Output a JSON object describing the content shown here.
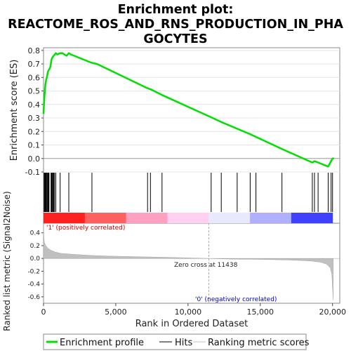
{
  "title_lines": [
    "Enrichment plot:",
    "REACTOME_ROS_AND_RNS_PRODUCTION_IN_PHA",
    "GOCYTES"
  ],
  "chart_data": [
    {
      "type": "line",
      "panel": "enrichment-score",
      "ylabel": "Enrichment score (ES)",
      "ylim": [
        -0.1,
        0.82
      ],
      "yticks": [
        "-0.1",
        "0.0",
        "0.1",
        "0.2",
        "0.3",
        "0.4",
        "0.5",
        "0.6",
        "0.7",
        "0.8"
      ],
      "grid": true,
      "series": [
        {
          "name": "Enrichment profile",
          "color": "#00e000",
          "points": [
            [
              0,
              0.33
            ],
            [
              30,
              0.4
            ],
            [
              60,
              0.45
            ],
            [
              90,
              0.5
            ],
            [
              130,
              0.55
            ],
            [
              180,
              0.58
            ],
            [
              230,
              0.6
            ],
            [
              280,
              0.63
            ],
            [
              330,
              0.65
            ],
            [
              400,
              0.66
            ],
            [
              480,
              0.68
            ],
            [
              530,
              0.72
            ],
            [
              580,
              0.74
            ],
            [
              630,
              0.75
            ],
            [
              700,
              0.76
            ],
            [
              780,
              0.77
            ],
            [
              850,
              0.78
            ],
            [
              950,
              0.77
            ],
            [
              1150,
              0.78
            ],
            [
              1300,
              0.78
            ],
            [
              1600,
              0.76
            ],
            [
              1750,
              0.78
            ],
            [
              1900,
              0.77
            ],
            [
              3300,
              0.71
            ],
            [
              3700,
              0.7
            ],
            [
              7200,
              0.52
            ],
            [
              7450,
              0.51
            ],
            [
              8200,
              0.47
            ],
            [
              11500,
              0.31
            ],
            [
              12300,
              0.27
            ],
            [
              13400,
              0.22
            ],
            [
              14300,
              0.18
            ],
            [
              14700,
              0.16
            ],
            [
              16500,
              0.07
            ],
            [
              18600,
              -0.03
            ],
            [
              18750,
              -0.02
            ],
            [
              19000,
              -0.03
            ],
            [
              19700,
              -0.06
            ],
            [
              19850,
              -0.03
            ],
            [
              20000,
              0.0
            ],
            [
              20100,
              0.0
            ]
          ]
        }
      ]
    },
    {
      "type": "hits",
      "panel": "hits",
      "hits": [
        40,
        80,
        120,
        160,
        200,
        250,
        300,
        340,
        380,
        520,
        560,
        600,
        650,
        700,
        760,
        850,
        1150,
        1750,
        3350,
        7200,
        7400,
        8200,
        11600,
        12300,
        13400,
        14300,
        14700,
        16500,
        18600,
        18750,
        19000,
        19700,
        19900,
        20000
      ]
    },
    {
      "type": "area",
      "panel": "ranking-metric",
      "xlabel": "Rank in Ordered Dataset",
      "ylabel": "Ranked list metric (Signal2Noise)",
      "xlim": [
        0,
        20500
      ],
      "ylim": [
        -0.7,
        0.55
      ],
      "xticks": [
        "0",
        "5,000",
        "10,000",
        "15,000",
        "20,000"
      ],
      "yticks": [
        "0.4",
        "0.2",
        "0.0",
        "-0.2",
        "-0.4",
        "-0.6"
      ],
      "zero_cross": 11438,
      "color": "#c0c0c0",
      "points": [
        [
          0,
          0.55
        ],
        [
          20,
          0.35
        ],
        [
          60,
          0.25
        ],
        [
          150,
          0.2
        ],
        [
          300,
          0.16
        ],
        [
          500,
          0.13
        ],
        [
          800,
          0.1
        ],
        [
          1200,
          0.08
        ],
        [
          2000,
          0.065
        ],
        [
          3500,
          0.045
        ],
        [
          5000,
          0.035
        ],
        [
          7000,
          0.025
        ],
        [
          9000,
          0.015
        ],
        [
          11438,
          0.0
        ],
        [
          13000,
          -0.01
        ],
        [
          15000,
          -0.015
        ],
        [
          17000,
          -0.025
        ],
        [
          18500,
          -0.04
        ],
        [
          19200,
          -0.06
        ],
        [
          19600,
          -0.09
        ],
        [
          19850,
          -0.15
        ],
        [
          19950,
          -0.25
        ],
        [
          20000,
          -0.45
        ],
        [
          20050,
          -0.65
        ]
      ]
    }
  ],
  "annotations": {
    "positive": "'1' (positively correlated)",
    "zero_cross": "Zero cross at 11438",
    "negative": "'0' (negatively correlated)"
  },
  "colors": {
    "positive": "#cc0000",
    "negative": "#0000cc",
    "gradient": [
      "#ff2020",
      "#ff6060",
      "#ffa0c0",
      "#ffd0f0",
      "#e8e8ff",
      "#b0b0ff",
      "#4040ff"
    ]
  },
  "legend": {
    "items": [
      {
        "label": "Enrichment profile",
        "color": "#00e000",
        "style": "thick"
      },
      {
        "label": "Hits",
        "color": "#000000",
        "style": "thin"
      },
      {
        "label": "Ranking metric scores",
        "color": "#c0c0c0",
        "style": "thin"
      }
    ]
  }
}
